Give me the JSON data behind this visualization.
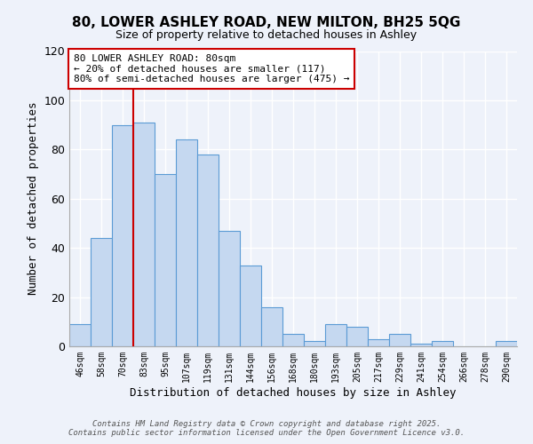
{
  "title1": "80, LOWER ASHLEY ROAD, NEW MILTON, BH25 5QG",
  "title2": "Size of property relative to detached houses in Ashley",
  "xlabel": "Distribution of detached houses by size in Ashley",
  "ylabel": "Number of detached properties",
  "bin_labels": [
    "46sqm",
    "58sqm",
    "70sqm",
    "83sqm",
    "95sqm",
    "107sqm",
    "119sqm",
    "131sqm",
    "144sqm",
    "156sqm",
    "168sqm",
    "180sqm",
    "193sqm",
    "205sqm",
    "217sqm",
    "229sqm",
    "241sqm",
    "254sqm",
    "266sqm",
    "278sqm",
    "290sqm"
  ],
  "bar_heights": [
    9,
    44,
    90,
    91,
    70,
    84,
    78,
    47,
    33,
    16,
    5,
    2,
    9,
    8,
    3,
    5,
    1,
    2,
    0,
    0,
    2
  ],
  "bar_color": "#c5d8f0",
  "bar_edge_color": "#5b9bd5",
  "property_line_x": 3,
  "annotation_line1": "80 LOWER ASHLEY ROAD: 80sqm",
  "annotation_line2": "← 20% of detached houses are smaller (117)",
  "annotation_line3": "80% of semi-detached houses are larger (475) →",
  "vline_color": "#cc0000",
  "ylim": [
    0,
    120
  ],
  "yticks": [
    0,
    20,
    40,
    60,
    80,
    100,
    120
  ],
  "background_color": "#eef2fa",
  "grid_color": "#ffffff",
  "footer1": "Contains HM Land Registry data © Crown copyright and database right 2025.",
  "footer2": "Contains public sector information licensed under the Open Government Licence v3.0."
}
